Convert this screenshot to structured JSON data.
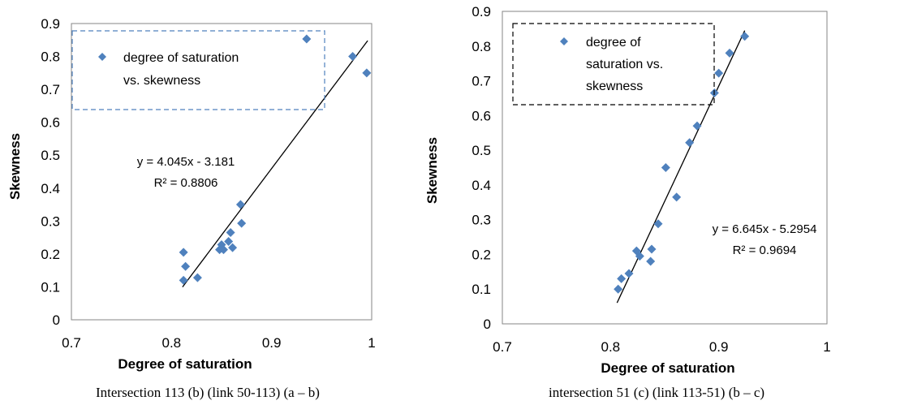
{
  "chart_data": [
    {
      "type": "scatter",
      "title": "",
      "xlabel": "Degree of saturation",
      "ylabel": "Skewness",
      "xlim": [
        0.7,
        1
      ],
      "ylim": [
        0,
        0.9
      ],
      "xticks": [
        0.7,
        0.8,
        0.9,
        1
      ],
      "xtick_labels": [
        "0.7",
        "0.8",
        "0.9",
        "1"
      ],
      "yticks": [
        0,
        0.1,
        0.2,
        0.3,
        0.4,
        0.5,
        0.6,
        0.7,
        0.8,
        0.9
      ],
      "ytick_labels": [
        "0",
        "0.1",
        "0.2",
        "0.3",
        "0.4",
        "0.5",
        "0.6",
        "0.7",
        "0.8",
        "0.9"
      ],
      "grid": false,
      "legend_position": "top-left",
      "legend_border": "dashed",
      "legend_border_color": "#4f81bd",
      "marker_color": "#4f81bd",
      "series": [
        {
          "name": "degree of saturation vs. skewness",
          "points": [
            [
              0.812,
              0.12
            ],
            [
              0.812,
              0.205
            ],
            [
              0.814,
              0.162
            ],
            [
              0.826,
              0.128
            ],
            [
              0.848,
              0.213
            ],
            [
              0.85,
              0.228
            ],
            [
              0.852,
              0.213
            ],
            [
              0.857,
              0.238
            ],
            [
              0.859,
              0.265
            ],
            [
              0.861,
              0.219
            ],
            [
              0.869,
              0.35
            ],
            [
              0.87,
              0.293
            ],
            [
              0.935,
              0.853
            ],
            [
              0.981,
              0.8
            ],
            [
              0.995,
              0.75
            ]
          ]
        }
      ],
      "trendline": {
        "slope": 4.045,
        "intercept": -3.181,
        "x_range": [
          0.811,
          0.996
        ]
      },
      "equation_label": "y = 4.045x - 3.181",
      "r2_label": "R² = 0.8806",
      "caption": "Intersection 113 (b) (link 50-113) (a – b)"
    },
    {
      "type": "scatter",
      "title": "",
      "xlabel": "Degree of saturation",
      "ylabel": "Skewness",
      "xlim": [
        0.7,
        1
      ],
      "ylim": [
        0,
        0.9
      ],
      "xticks": [
        0.7,
        0.8,
        0.9,
        1
      ],
      "xtick_labels": [
        "0.7",
        "0.8",
        "0.9",
        "1"
      ],
      "yticks": [
        0,
        0.1,
        0.2,
        0.3,
        0.4,
        0.5,
        0.6,
        0.7,
        0.8,
        0.9
      ],
      "ytick_labels": [
        "0",
        "0.1",
        "0.2",
        "0.3",
        "0.4",
        "0.5",
        "0.6",
        "0.7",
        "0.8",
        "0.9"
      ],
      "grid": false,
      "legend_position": "top-left",
      "legend_border": "dashed",
      "legend_border_color": "#000000",
      "marker_color": "#4f81bd",
      "series": [
        {
          "name": "degree of saturation vs. skewness",
          "points": [
            [
              0.807,
              0.1
            ],
            [
              0.81,
              0.13
            ],
            [
              0.817,
              0.145
            ],
            [
              0.824,
              0.21
            ],
            [
              0.827,
              0.195
            ],
            [
              0.837,
              0.18
            ],
            [
              0.838,
              0.215
            ],
            [
              0.844,
              0.288
            ],
            [
              0.851,
              0.45
            ],
            [
              0.861,
              0.365
            ],
            [
              0.873,
              0.522
            ],
            [
              0.88,
              0.57
            ],
            [
              0.896,
              0.665
            ],
            [
              0.9,
              0.722
            ],
            [
              0.91,
              0.78
            ],
            [
              0.924,
              0.828
            ]
          ]
        }
      ],
      "trendline": {
        "slope": 6.645,
        "intercept": -5.2954,
        "x_range": [
          0.806,
          0.924
        ]
      },
      "equation_label": "y = 6.645x - 5.2954",
      "r2_label": "R² = 0.9694",
      "caption": "intersection 51 (c) (link 113-51) (b – c)"
    }
  ]
}
